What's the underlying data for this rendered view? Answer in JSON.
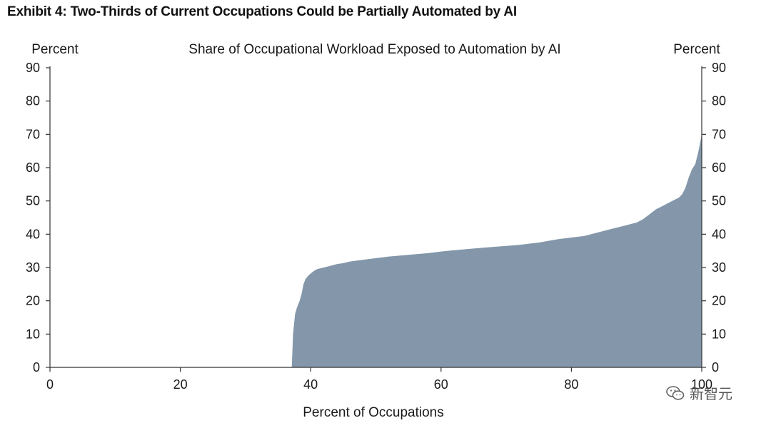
{
  "exhibit_title": "Exhibit 4: Two-Thirds of Current Occupations Could be Partially Automated by AI",
  "watermark": {
    "text": "新智元",
    "icon": "wechat-icon"
  },
  "chart_data": {
    "type": "area",
    "title": "Share of Occupational Workload Exposed to Automation by AI",
    "xlabel": "Percent of Occupations",
    "ylabel_left": "Percent",
    "ylabel_right": "Percent",
    "xlim": [
      0,
      100
    ],
    "ylim": [
      0,
      90
    ],
    "x_ticks": [
      0,
      20,
      40,
      60,
      80,
      100
    ],
    "y_ticks": [
      0,
      10,
      20,
      30,
      40,
      50,
      60,
      70,
      80,
      90
    ],
    "grid": false,
    "fill_color": "#8497aa",
    "series": [
      {
        "x": [
          37.1,
          37.3,
          37.6,
          37.9,
          38.3,
          38.6,
          38.9,
          39.2,
          39.6,
          40.0,
          40.5,
          41.0,
          42.0,
          43.0,
          44.0,
          45.0,
          46.0,
          48.0,
          50.0,
          52.0,
          55.0,
          58.0,
          60.0,
          62.0,
          65.0,
          68.0,
          70.0,
          72.0,
          75.0,
          78.0,
          80.0,
          82.0,
          84.0,
          86.0,
          88.0,
          90.0,
          91.0,
          92.0,
          93.0,
          94.0,
          95.0,
          96.0,
          96.5,
          97.0,
          97.5,
          98.0,
          98.5,
          99.0,
          99.5,
          100.0
        ],
        "y": [
          0,
          10,
          16,
          18,
          20,
          22,
          25,
          26.5,
          27.5,
          28.2,
          29.0,
          29.5,
          30.0,
          30.5,
          31.0,
          31.3,
          31.8,
          32.3,
          32.8,
          33.3,
          33.8,
          34.3,
          34.8,
          35.2,
          35.7,
          36.2,
          36.5,
          36.8,
          37.5,
          38.5,
          39.0,
          39.5,
          40.5,
          41.5,
          42.5,
          43.5,
          44.5,
          46.0,
          47.5,
          48.5,
          49.5,
          50.5,
          51.0,
          52.0,
          54.0,
          57.0,
          59.5,
          61.0,
          65.0,
          70.0
        ]
      }
    ]
  }
}
